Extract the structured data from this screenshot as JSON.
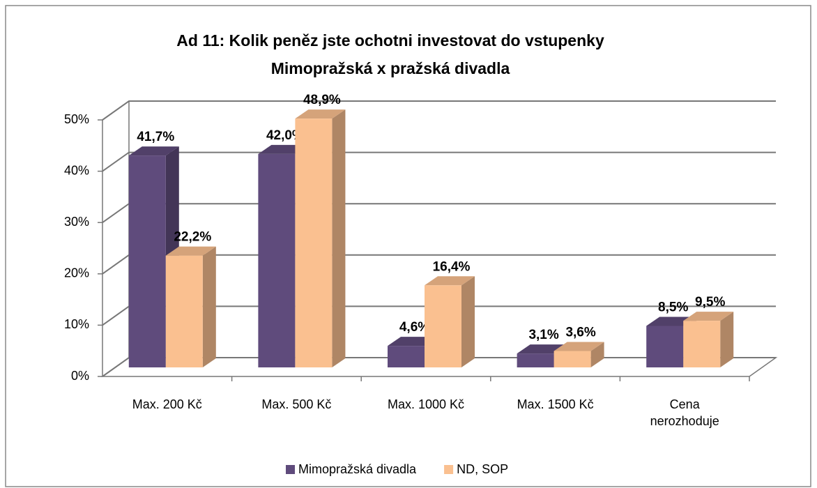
{
  "chart_data": {
    "type": "bar3d",
    "title": "Ad 11: Kolik peněz jste ochotni investovat do vstupenky",
    "subtitle": "Mimopražská x pražská divadla",
    "categories": [
      "Max. 200 Kč",
      "Max. 500 Kč",
      "Max. 1000 Kč",
      "Max. 1500 Kč",
      "Cena nerozhoduje"
    ],
    "series": [
      {
        "name": "Mimopražská divadla",
        "color": "#5f4b7c",
        "values": [
          41.7,
          42.0,
          4.6,
          3.1,
          8.5
        ],
        "value_labels": [
          "41,7%",
          "42,0%",
          "4,6%",
          "3,1%",
          "8,5%"
        ]
      },
      {
        "name": "ND, SOP",
        "color": "#fac090",
        "values": [
          22.2,
          48.9,
          16.4,
          3.6,
          9.5
        ],
        "value_labels": [
          "22,2%",
          "48,9%",
          "16,4%",
          "3,6%",
          "9,5%"
        ]
      }
    ],
    "ylim": [
      0,
      50
    ],
    "yticks": [
      {
        "value": 0,
        "label": "0%"
      },
      {
        "value": 10,
        "label": "10%"
      },
      {
        "value": 20,
        "label": "20%"
      },
      {
        "value": 30,
        "label": "30%"
      },
      {
        "value": 40,
        "label": "40%"
      },
      {
        "value": 50,
        "label": "50%"
      }
    ],
    "grid": true,
    "legend": "bottom"
  }
}
